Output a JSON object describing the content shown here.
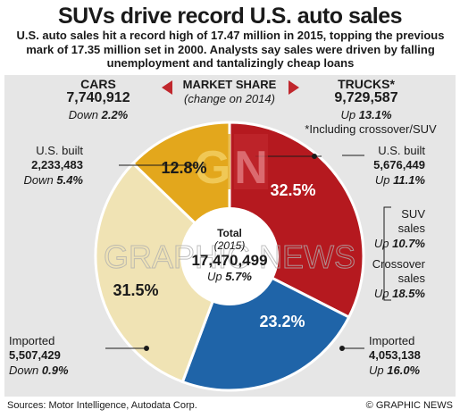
{
  "title": "SUVs drive record U.S. auto sales",
  "intro": "U.S. auto sales hit a record high of 17.47 million in 2015, topping the previous mark of 17.35 million set in 2000. Analysts say sales were driven by falling unemployment and tantalizingly cheap loans",
  "market_share": {
    "title": "MARKET SHARE",
    "subtitle": "(change on 2014)"
  },
  "cars": {
    "label": "CARS",
    "value": "7,740,912",
    "change_prefix": "Down",
    "change": "2.2%"
  },
  "trucks": {
    "label": "TRUCKS*",
    "value": "9,729,587",
    "change_prefix": "Up",
    "change": "13.1%",
    "note": "*Including crossover/SUV"
  },
  "us_built_cars": {
    "label": "U.S. built",
    "value": "2,233,483",
    "change_prefix": "Down",
    "change": "5.4%"
  },
  "us_built_trucks": {
    "label": "U.S. built",
    "value": "5,676,449",
    "change_prefix": "Up",
    "change": "11.1%"
  },
  "imported_cars": {
    "label": "Imported",
    "value": "5,507,429",
    "change_prefix": "Down",
    "change": "0.9%"
  },
  "imported_trucks": {
    "label": "Imported",
    "value": "4,053,138",
    "change_prefix": "Up",
    "change": "16.0%"
  },
  "suv": {
    "label1": "SUV",
    "label2": "sales",
    "change_prefix": "Up",
    "change": "10.7%"
  },
  "crossover": {
    "label1": "Crossover",
    "label2": "sales",
    "change_prefix": "Up",
    "change": "18.5%"
  },
  "total": {
    "label": "Total",
    "year": "(2015)",
    "value": "17,470,499",
    "change_prefix": "Up",
    "change": "5.7%"
  },
  "footer": {
    "sources": "Sources: Motor Intelligence, Autodata Corp.",
    "credit": "© GRAPHIC NEWS"
  },
  "watermark": "GRAPHIC NEWS",
  "colors": {
    "us_built_trucks": "#b5191f",
    "imported_trucks": "#1f64a8",
    "imported_cars": "#f0e3b4",
    "us_built_cars": "#e3a71c",
    "triangle": "#c0272d"
  },
  "chart_data": {
    "type": "pie",
    "style": "donut",
    "categories": [
      "U.S. built trucks",
      "Imported trucks",
      "Imported cars",
      "U.S. built cars"
    ],
    "values": [
      32.5,
      23.2,
      31.5,
      12.8
    ],
    "labels": [
      "32.5%",
      "23.2%",
      "31.5%",
      "12.8%"
    ],
    "unit": "%",
    "start": "top, clockwise"
  }
}
